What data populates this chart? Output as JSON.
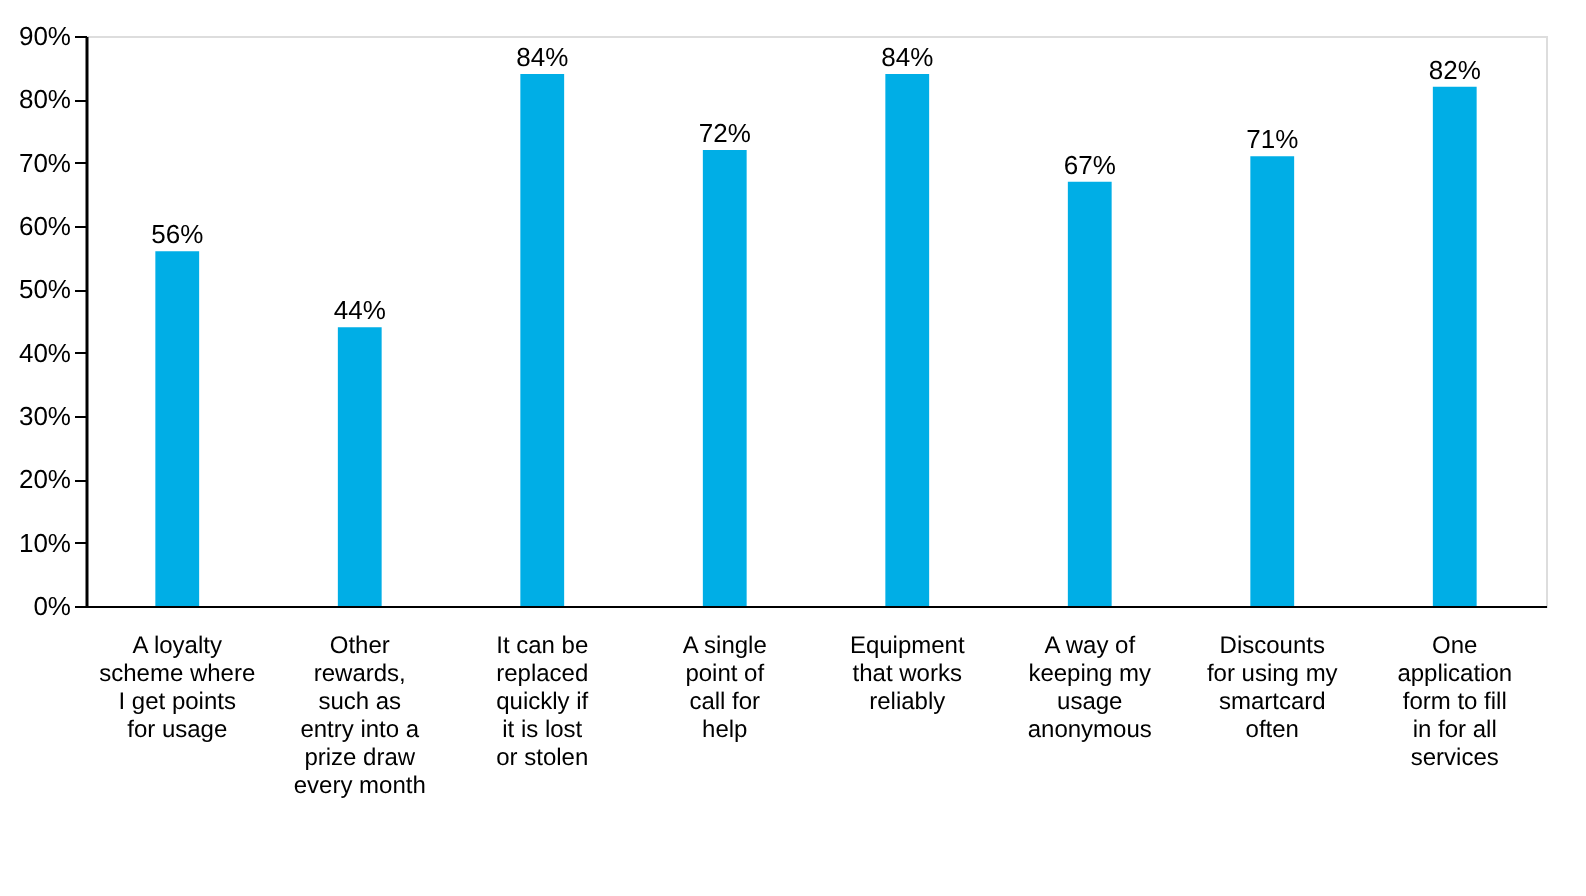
{
  "chart_data": {
    "type": "bar",
    "categories": [
      "A loyalty scheme where I get points for usage",
      "Other rewards, such as entry into a prize draw every month",
      "It can be replaced quickly if it is lost or stolen",
      "A single point of call for help",
      "Equipment that works reliably",
      "A way of keeping my usage anonymous",
      "Discounts for using my smartcard often",
      "One application form to fill in for all services"
    ],
    "values": [
      56,
      44,
      84,
      72,
      84,
      67,
      71,
      82
    ],
    "value_labels": [
      "56%",
      "44%",
      "84%",
      "72%",
      "84%",
      "67%",
      "71%",
      "82%"
    ],
    "color": "#00aee6",
    "ylim": [
      0,
      90
    ],
    "yticks": [
      {
        "value": 0,
        "label": "0%"
      },
      {
        "value": 10,
        "label": "10%"
      },
      {
        "value": 20,
        "label": "20%"
      },
      {
        "value": 30,
        "label": "30%"
      },
      {
        "value": 40,
        "label": "40%"
      },
      {
        "value": 50,
        "label": "50%"
      },
      {
        "value": 60,
        "label": "60%"
      },
      {
        "value": 70,
        "label": "70%"
      },
      {
        "value": 80,
        "label": "80%"
      },
      {
        "value": 90,
        "label": "90%"
      }
    ],
    "grid": false
  }
}
